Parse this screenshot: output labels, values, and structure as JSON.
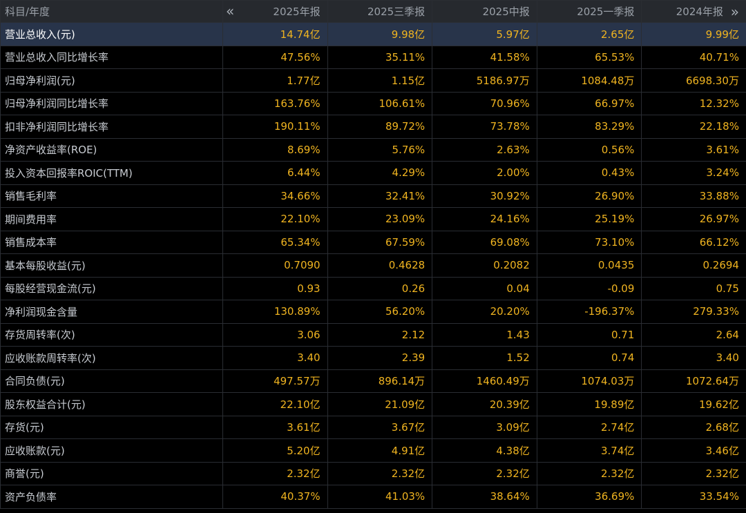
{
  "header": {
    "label": "科目/年度",
    "nav_prev": "«",
    "nav_next": "»",
    "periods": [
      "2025年报",
      "2025三季报",
      "2025中报",
      "2025一季报",
      "2024年报"
    ]
  },
  "rows": [
    {
      "label": "营业总收入(元)",
      "values": [
        "14.74亿",
        "9.98亿",
        "5.97亿",
        "2.65亿",
        "9.99亿"
      ]
    },
    {
      "label": "营业总收入同比增长率",
      "values": [
        "47.56%",
        "35.11%",
        "41.58%",
        "65.53%",
        "40.71%"
      ]
    },
    {
      "label": "归母净利润(元)",
      "values": [
        "1.77亿",
        "1.15亿",
        "5186.97万",
        "1084.48万",
        "6698.30万"
      ]
    },
    {
      "label": "归母净利润同比增长率",
      "values": [
        "163.76%",
        "106.61%",
        "70.96%",
        "66.97%",
        "12.32%"
      ]
    },
    {
      "label": "扣非净利润同比增长率",
      "values": [
        "190.11%",
        "89.72%",
        "73.78%",
        "83.29%",
        "22.18%"
      ]
    },
    {
      "label": "净资产收益率(ROE)",
      "values": [
        "8.69%",
        "5.76%",
        "2.63%",
        "0.56%",
        "3.61%"
      ]
    },
    {
      "label": "投入资本回报率ROIC(TTM)",
      "values": [
        "6.44%",
        "4.29%",
        "2.00%",
        "0.43%",
        "3.24%"
      ]
    },
    {
      "label": "销售毛利率",
      "values": [
        "34.66%",
        "32.41%",
        "30.92%",
        "26.90%",
        "33.88%"
      ]
    },
    {
      "label": "期间费用率",
      "values": [
        "22.10%",
        "23.09%",
        "24.16%",
        "25.19%",
        "26.97%"
      ]
    },
    {
      "label": "销售成本率",
      "values": [
        "65.34%",
        "67.59%",
        "69.08%",
        "73.10%",
        "66.12%"
      ]
    },
    {
      "label": "基本每股收益(元)",
      "values": [
        "0.7090",
        "0.4628",
        "0.2082",
        "0.0435",
        "0.2694"
      ]
    },
    {
      "label": "每股经营现金流(元)",
      "values": [
        "0.93",
        "0.26",
        "0.04",
        "-0.09",
        "0.75"
      ]
    },
    {
      "label": "净利润现金含量",
      "values": [
        "130.89%",
        "56.20%",
        "20.20%",
        "-196.37%",
        "279.33%"
      ]
    },
    {
      "label": "存货周转率(次)",
      "values": [
        "3.06",
        "2.12",
        "1.43",
        "0.71",
        "2.64"
      ]
    },
    {
      "label": "应收账款周转率(次)",
      "values": [
        "3.40",
        "2.39",
        "1.52",
        "0.74",
        "3.40"
      ]
    },
    {
      "label": "合同负债(元)",
      "values": [
        "497.57万",
        "896.14万",
        "1460.49万",
        "1074.03万",
        "1072.64万"
      ]
    },
    {
      "label": "股东权益合计(元)",
      "values": [
        "22.10亿",
        "21.09亿",
        "20.39亿",
        "19.89亿",
        "19.62亿"
      ]
    },
    {
      "label": "存货(元)",
      "values": [
        "3.61亿",
        "3.67亿",
        "3.09亿",
        "2.74亿",
        "2.68亿"
      ]
    },
    {
      "label": "应收账款(元)",
      "values": [
        "5.20亿",
        "4.91亿",
        "4.38亿",
        "3.74亿",
        "3.46亿"
      ]
    },
    {
      "label": "商誉(元)",
      "values": [
        "2.32亿",
        "2.32亿",
        "2.32亿",
        "2.32亿",
        "2.32亿"
      ]
    },
    {
      "label": "资产负债率",
      "values": [
        "40.37%",
        "41.03%",
        "38.64%",
        "36.69%",
        "33.54%"
      ]
    }
  ],
  "colors": {
    "value": "#f0b420",
    "label": "#c8ccd2",
    "highlight_row": "#28344a",
    "header_bg": "#26292e"
  }
}
